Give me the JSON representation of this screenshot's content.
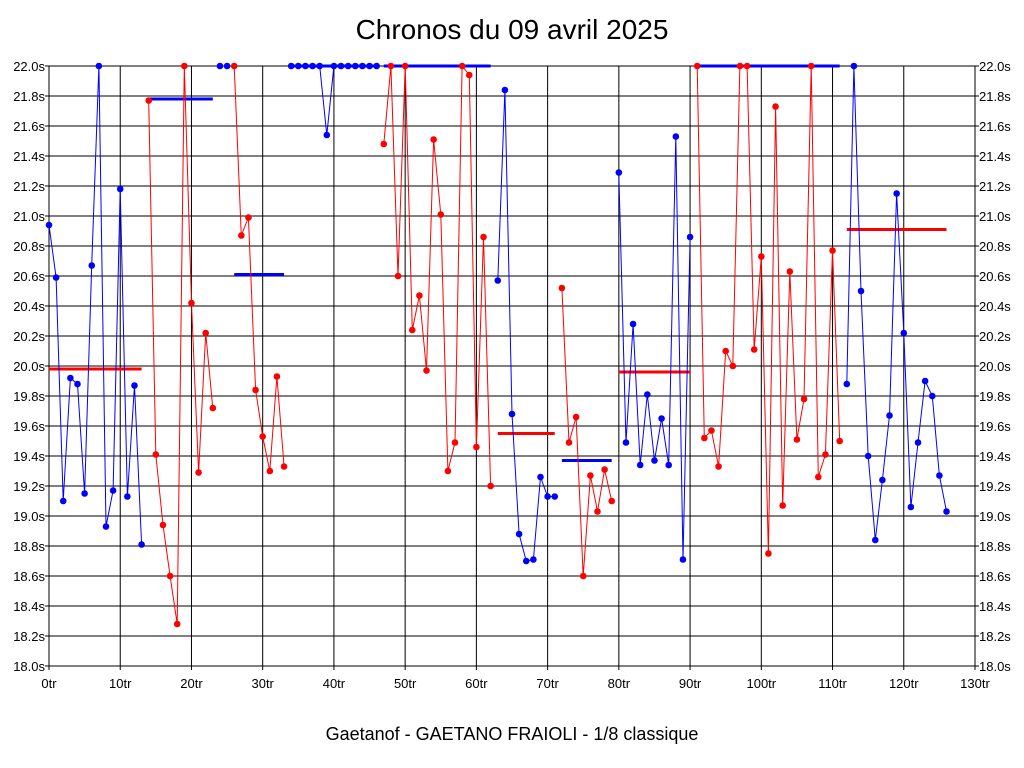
{
  "chart_data": {
    "type": "line",
    "title": "Chronos du 09 avril 2025",
    "subtitle": "Gaetanof - GAETANO FRAIOLI - 1/8 classique",
    "xlim": [
      0,
      130
    ],
    "ylim": [
      18.0,
      22.0
    ],
    "grid": true,
    "x_ticks": [
      "0tr",
      "10tr",
      "20tr",
      "30tr",
      "40tr",
      "50tr",
      "60tr",
      "70tr",
      "80tr",
      "90tr",
      "100tr",
      "110tr",
      "120tr",
      "130tr"
    ],
    "y_ticks": [
      "18.0s",
      "18.2s",
      "18.4s",
      "18.6s",
      "18.8s",
      "19.0s",
      "19.2s",
      "19.4s",
      "19.6s",
      "19.8s",
      "20.0s",
      "20.2s",
      "20.4s",
      "20.6s",
      "20.8s",
      "21.0s",
      "21.2s",
      "21.4s",
      "21.6s",
      "21.8s",
      "22.0s"
    ],
    "colors": {
      "blue": "#0000ff",
      "red": "#ff0000"
    },
    "segments": [
      {
        "color": "blue",
        "points": [
          [
            0,
            20.94
          ],
          [
            1,
            20.59
          ],
          [
            2,
            19.1
          ],
          [
            3,
            19.92
          ],
          [
            4,
            19.88
          ],
          [
            5,
            19.15
          ],
          [
            6,
            20.67
          ],
          [
            7,
            22.0
          ],
          [
            8,
            18.93
          ],
          [
            9,
            19.17
          ],
          [
            10,
            21.18
          ],
          [
            11,
            19.13
          ],
          [
            12,
            19.87
          ],
          [
            13,
            18.81
          ]
        ]
      },
      {
        "color": "red",
        "points": [
          [
            14,
            21.77
          ],
          [
            15,
            19.41
          ],
          [
            16,
            18.94
          ],
          [
            17,
            18.6
          ],
          [
            18,
            18.28
          ],
          [
            19,
            22.0
          ],
          [
            20,
            20.42
          ],
          [
            21,
            19.29
          ],
          [
            22,
            20.22
          ],
          [
            23,
            19.72
          ]
        ]
      },
      {
        "color": "blue",
        "points": [
          [
            24,
            22.0
          ],
          [
            25,
            22.0
          ]
        ]
      },
      {
        "color": "red",
        "points": [
          [
            26,
            22.0
          ],
          [
            27,
            20.87
          ],
          [
            28,
            20.99
          ],
          [
            29,
            19.84
          ],
          [
            30,
            19.53
          ],
          [
            31,
            19.3
          ],
          [
            32,
            19.93
          ],
          [
            33,
            19.33
          ]
        ]
      },
      {
        "color": "blue",
        "points": [
          [
            34,
            22.0
          ],
          [
            35,
            22.0
          ],
          [
            36,
            22.0
          ],
          [
            37,
            22.0
          ],
          [
            38,
            22.0
          ],
          [
            39,
            21.54
          ],
          [
            40,
            22.0
          ],
          [
            41,
            22.0
          ],
          [
            42,
            22.0
          ],
          [
            43,
            22.0
          ],
          [
            44,
            22.0
          ],
          [
            45,
            22.0
          ],
          [
            46,
            22.0
          ]
        ]
      },
      {
        "color": "red",
        "points": [
          [
            47,
            21.48
          ],
          [
            48,
            22.0
          ],
          [
            49,
            20.6
          ],
          [
            50,
            22.0
          ],
          [
            51,
            20.24
          ],
          [
            52,
            20.47
          ],
          [
            53,
            19.97
          ],
          [
            54,
            21.51
          ],
          [
            55,
            21.01
          ],
          [
            56,
            19.3
          ],
          [
            57,
            19.49
          ],
          [
            58,
            22.0
          ],
          [
            59,
            21.94
          ],
          [
            60,
            19.46
          ],
          [
            61,
            20.86
          ],
          [
            62,
            19.2
          ]
        ]
      },
      {
        "color": "blue",
        "points": [
          [
            63,
            20.57
          ],
          [
            64,
            21.84
          ],
          [
            65,
            19.68
          ],
          [
            66,
            18.88
          ],
          [
            67,
            18.7
          ],
          [
            68,
            18.71
          ],
          [
            69,
            19.26
          ],
          [
            70,
            19.13
          ],
          [
            71,
            19.13
          ]
        ]
      },
      {
        "color": "red",
        "points": [
          [
            72,
            20.52
          ],
          [
            73,
            19.49
          ],
          [
            74,
            19.66
          ],
          [
            75,
            18.6
          ],
          [
            76,
            19.27
          ],
          [
            77,
            19.03
          ],
          [
            78,
            19.31
          ],
          [
            79,
            19.1
          ]
        ]
      },
      {
        "color": "blue",
        "points": [
          [
            80,
            21.29
          ],
          [
            81,
            19.49
          ],
          [
            82,
            20.28
          ],
          [
            83,
            19.34
          ],
          [
            84,
            19.81
          ],
          [
            85,
            19.37
          ],
          [
            86,
            19.65
          ],
          [
            87,
            19.34
          ],
          [
            88,
            21.53
          ],
          [
            89,
            18.71
          ],
          [
            90,
            20.86
          ]
        ]
      },
      {
        "color": "red",
        "points": [
          [
            91,
            22.0
          ],
          [
            92,
            19.52
          ],
          [
            93,
            19.57
          ],
          [
            94,
            19.33
          ],
          [
            95,
            20.1
          ],
          [
            96,
            20.0
          ],
          [
            97,
            22.0
          ],
          [
            98,
            22.0
          ],
          [
            99,
            20.11
          ],
          [
            100,
            20.73
          ],
          [
            101,
            18.75
          ],
          [
            102,
            21.73
          ],
          [
            103,
            19.07
          ],
          [
            104,
            20.63
          ],
          [
            105,
            19.51
          ],
          [
            106,
            19.78
          ],
          [
            107,
            22.0
          ],
          [
            108,
            19.26
          ],
          [
            109,
            19.41
          ],
          [
            110,
            20.77
          ],
          [
            111,
            19.5
          ]
        ]
      },
      {
        "color": "blue",
        "points": [
          [
            112,
            19.88
          ],
          [
            113,
            22.0
          ],
          [
            114,
            20.5
          ],
          [
            115,
            19.4
          ],
          [
            116,
            18.84
          ],
          [
            117,
            19.24
          ],
          [
            118,
            19.67
          ],
          [
            119,
            21.15
          ],
          [
            120,
            20.22
          ],
          [
            121,
            19.06
          ],
          [
            122,
            19.49
          ],
          [
            123,
            19.9
          ],
          [
            124,
            19.8
          ],
          [
            125,
            19.27
          ],
          [
            126,
            19.03
          ]
        ]
      }
    ],
    "averages": [
      {
        "color": "red",
        "x": [
          0,
          13
        ],
        "y": 19.98
      },
      {
        "color": "blue",
        "x": [
          14,
          23
        ],
        "y": 21.78
      },
      {
        "color": "blue",
        "x": [
          26,
          33
        ],
        "y": 20.61
      },
      {
        "color": "blue",
        "x": [
          34,
          46
        ],
        "y": 22.0
      },
      {
        "color": "blue",
        "x": [
          47,
          62
        ],
        "y": 22.0
      },
      {
        "color": "red",
        "x": [
          63,
          71
        ],
        "y": 19.55
      },
      {
        "color": "blue",
        "x": [
          72,
          79
        ],
        "y": 19.37
      },
      {
        "color": "red",
        "x": [
          80,
          90
        ],
        "y": 19.96
      },
      {
        "color": "blue",
        "x": [
          91,
          111
        ],
        "y": 22.0
      },
      {
        "color": "red",
        "x": [
          112,
          126
        ],
        "y": 20.91
      }
    ]
  }
}
